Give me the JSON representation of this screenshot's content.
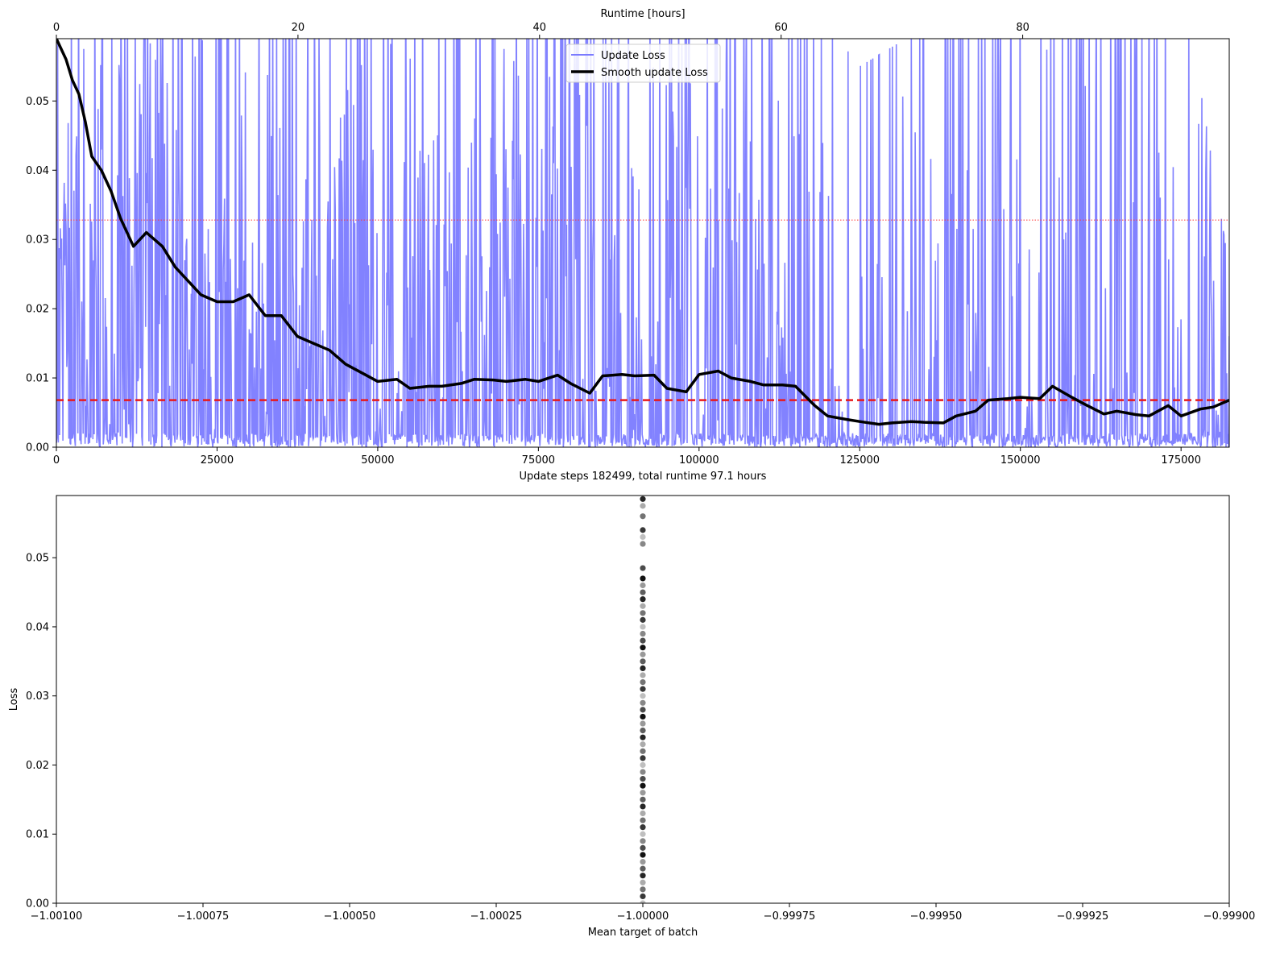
{
  "chart_data": [
    {
      "type": "line",
      "top_xlabel": "Runtime [hours]",
      "top_xticks": [
        "0",
        "20",
        "40",
        "60",
        "80"
      ],
      "top_xtick_values": [
        0,
        20,
        40,
        60,
        80
      ],
      "top_xlim": [
        0,
        97.1
      ],
      "xlabel": "Update steps 182499, total runtime 97.1 hours",
      "xlim": [
        0,
        182499
      ],
      "xticks": [
        "0",
        "25000",
        "50000",
        "75000",
        "100000",
        "125000",
        "150000",
        "175000"
      ],
      "xtick_values": [
        0,
        25000,
        50000,
        75000,
        100000,
        125000,
        150000,
        175000
      ],
      "ylim": [
        0,
        0.059
      ],
      "yticks": [
        "0.00",
        "0.01",
        "0.02",
        "0.03",
        "0.04",
        "0.05"
      ],
      "ytick_values": [
        0,
        0.01,
        0.02,
        0.03,
        0.04,
        0.05
      ],
      "legend": {
        "placement": "top-center",
        "items": [
          {
            "label": "Update Loss",
            "color": "#7b7bff"
          },
          {
            "label": "Smooth update Loss",
            "color": "#000000"
          }
        ]
      },
      "hlines": [
        {
          "y": 0.0328,
          "color": "#ff3b3b",
          "style": "dotted"
        },
        {
          "y": 0.0068,
          "color": "#e8191b",
          "style": "dashed"
        }
      ],
      "series": [
        {
          "name": "Update Loss",
          "color": "#7b7bff",
          "note_values": "highly noisy spikes between 0 and above the plotted range",
          "x": [
            0,
            2000,
            5000,
            10000,
            20000,
            30000,
            40000,
            50000,
            60000,
            75000,
            90000,
            100000,
            115000,
            125000,
            150000,
            175000,
            182499
          ],
          "envelope_max": [
            0.059,
            0.059,
            0.059,
            0.059,
            0.059,
            0.059,
            0.058,
            0.059,
            0.058,
            0.059,
            0.059,
            0.059,
            0.057,
            0.045,
            0.059,
            0.059,
            0.016
          ]
        },
        {
          "name": "Smooth update Loss",
          "color": "#000000",
          "x": [
            0,
            1500,
            2500,
            3500,
            4500,
            5500,
            7000,
            8500,
            10000,
            12000,
            14000,
            16500,
            18500,
            20500,
            22500,
            25000,
            27500,
            30000,
            32500,
            35000,
            37500,
            40000,
            42500,
            45000,
            48000,
            50000,
            53000,
            55000,
            58000,
            60000,
            63000,
            65000,
            68000,
            70000,
            73000,
            75000,
            78000,
            80000,
            83000,
            85000,
            88000,
            90000,
            93000,
            95000,
            98000,
            100000,
            103000,
            105000,
            108000,
            110000,
            113000,
            115000,
            118000,
            120000,
            123000,
            125000,
            128000,
            130000,
            133000,
            135000,
            138000,
            140000,
            143000,
            145000,
            148000,
            150000,
            153000,
            155000,
            158000,
            160000,
            163000,
            165000,
            168000,
            170000,
            173000,
            175000,
            178000,
            180000,
            182499
          ],
          "y": [
            0.059,
            0.056,
            0.053,
            0.051,
            0.047,
            0.042,
            0.04,
            0.037,
            0.033,
            0.029,
            0.031,
            0.029,
            0.026,
            0.024,
            0.022,
            0.021,
            0.021,
            0.022,
            0.019,
            0.019,
            0.016,
            0.015,
            0.014,
            0.012,
            0.0105,
            0.0095,
            0.0098,
            0.0085,
            0.0088,
            0.0088,
            0.0092,
            0.0098,
            0.0097,
            0.0095,
            0.0098,
            0.0095,
            0.0104,
            0.0092,
            0.0078,
            0.0103,
            0.0105,
            0.0103,
            0.0104,
            0.0085,
            0.008,
            0.0105,
            0.011,
            0.01,
            0.0095,
            0.009,
            0.009,
            0.0088,
            0.006,
            0.0045,
            0.004,
            0.0037,
            0.0033,
            0.0035,
            0.0037,
            0.0036,
            0.0035,
            0.0045,
            0.0052,
            0.0068,
            0.007,
            0.0072,
            0.007,
            0.0088,
            0.0072,
            0.0062,
            0.0048,
            0.0052,
            0.0047,
            0.0045,
            0.006,
            0.0045,
            0.0055,
            0.0058,
            0.0068
          ]
        }
      ]
    },
    {
      "type": "scatter",
      "xlabel": "Mean target of batch",
      "ylabel": "Loss",
      "xlim": [
        -1.001,
        -0.999
      ],
      "xticks": [
        "−1.00100",
        "−1.00075",
        "−1.00050",
        "−1.00025",
        "−1.00000",
        "−0.99975",
        "−0.99950",
        "−0.99925",
        "−0.99900"
      ],
      "xtick_values": [
        -1.001,
        -1.00075,
        -1.0005,
        -1.00025,
        -1.0,
        -0.99975,
        -0.9995,
        -0.99925,
        -0.999
      ],
      "ylim": [
        0,
        0.059
      ],
      "yticks": [
        "0.00",
        "0.01",
        "0.02",
        "0.03",
        "0.04",
        "0.05"
      ],
      "ytick_values": [
        0,
        0.01,
        0.02,
        0.03,
        0.04,
        0.05
      ],
      "points_x": -1.0,
      "points_y": [
        0.0,
        0.001,
        0.002,
        0.003,
        0.004,
        0.005,
        0.006,
        0.007,
        0.008,
        0.009,
        0.01,
        0.011,
        0.012,
        0.013,
        0.014,
        0.015,
        0.016,
        0.017,
        0.018,
        0.019,
        0.02,
        0.021,
        0.022,
        0.023,
        0.024,
        0.025,
        0.026,
        0.027,
        0.028,
        0.029,
        0.03,
        0.031,
        0.032,
        0.033,
        0.034,
        0.035,
        0.036,
        0.037,
        0.038,
        0.039,
        0.04,
        0.041,
        0.042,
        0.043,
        0.044,
        0.045,
        0.046,
        0.047,
        0.0485,
        0.052,
        0.053,
        0.054,
        0.056,
        0.0575,
        0.0585
      ],
      "point_color": "#000000"
    }
  ]
}
